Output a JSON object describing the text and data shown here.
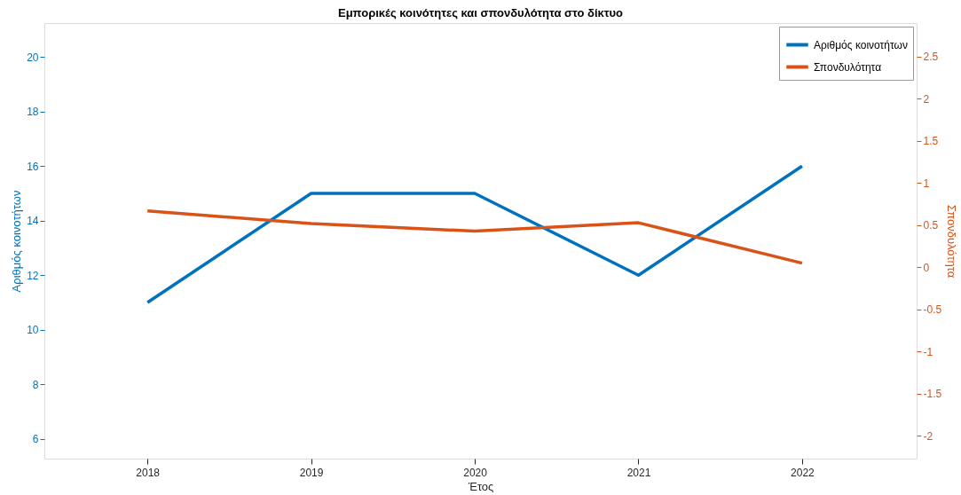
{
  "chart_data": {
    "type": "line",
    "title": "Εμπορικές κοινότητες και σπονδυλότητα στο δίκτυο",
    "xlabel": "Έτος",
    "ylabel": "Αριθμός κοινοτήτων",
    "y2label": "Σπονδυλότητα",
    "x": [
      2018,
      2019,
      2020,
      2021,
      2022
    ],
    "series": [
      {
        "name": "Αριθμός κοινοτήτων",
        "color": "#0072bd",
        "values": [
          11,
          15,
          15,
          12,
          16
        ]
      },
      {
        "name": "Σπονδυλότητα",
        "color": "#d95319",
        "axis": "y2",
        "values": [
          0.67,
          0.52,
          0.43,
          0.53,
          0.05
        ]
      }
    ],
    "xlim": [
      2017.37,
      2022.7
    ],
    "xticks": [
      2018,
      2019,
      2020,
      2021,
      2022
    ],
    "ylim": [
      5.28,
      21.24
    ],
    "yticks": [
      6,
      8,
      10,
      12,
      14,
      16,
      18,
      20
    ],
    "y2lim": [
      -2.27,
      2.9
    ],
    "y2ticks": [
      -2,
      -1.5,
      -1,
      -0.5,
      0,
      0.5,
      1,
      1.5,
      2,
      2.5
    ],
    "grid": false,
    "legend": "top right",
    "marker": "none",
    "line_style": "solid"
  }
}
